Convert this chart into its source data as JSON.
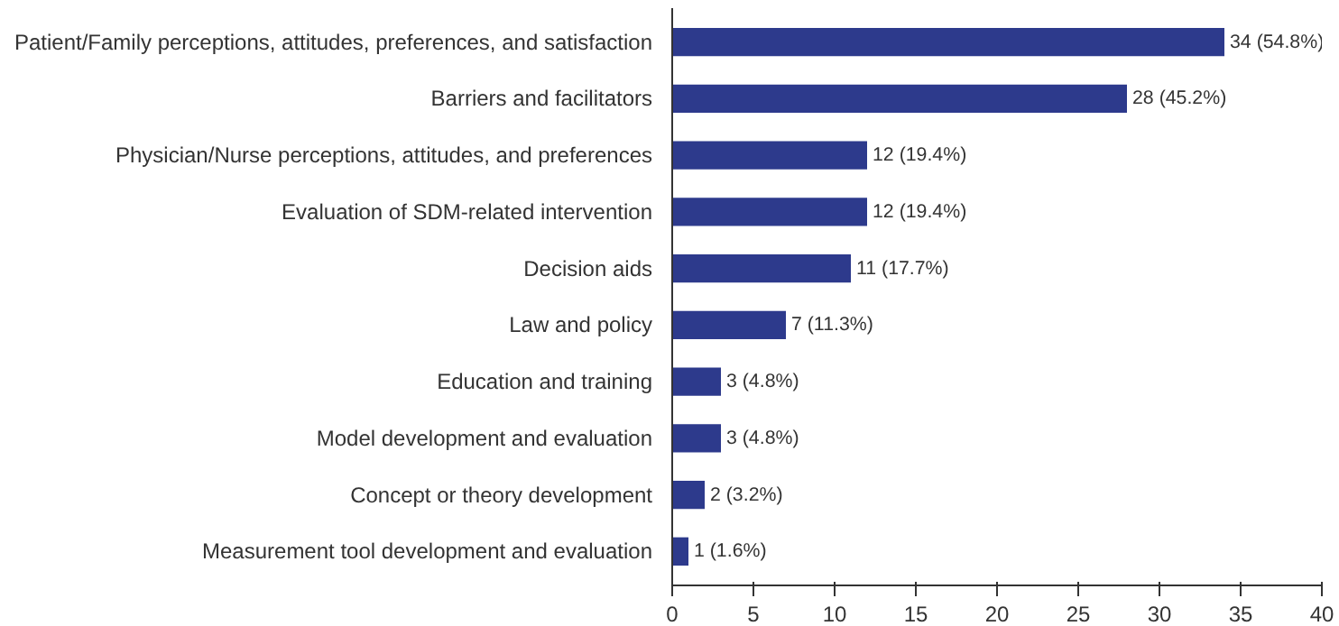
{
  "chart_data": {
    "type": "bar",
    "orientation": "horizontal",
    "categories": [
      "Patient/Family perceptions, attitudes, preferences, and satisfaction",
      "Barriers and facilitators",
      "Physician/Nurse perceptions, attitudes, and preferences",
      "Evaluation of SDM-related intervention",
      "Decision aids",
      "Law and policy",
      "Education and training",
      "Model development and evaluation",
      "Concept or theory development",
      "Measurement tool development and evaluation"
    ],
    "values": [
      34,
      28,
      12,
      12,
      11,
      7,
      3,
      3,
      2,
      1
    ],
    "value_labels": [
      "34 (54.8%)",
      "28 (45.2%)",
      "12 (19.4%)",
      "12 (19.4%)",
      "11 (17.7%)",
      "7 (11.3%)",
      "3 (4.8%)",
      "3 (4.8%)",
      "2 (3.2%)",
      "1 (1.6%)"
    ],
    "color": "#2d3a8c",
    "xlim": [
      0,
      40
    ],
    "xticks": [
      0,
      5,
      10,
      15,
      20,
      25,
      30,
      35,
      40
    ],
    "grid": false
  }
}
